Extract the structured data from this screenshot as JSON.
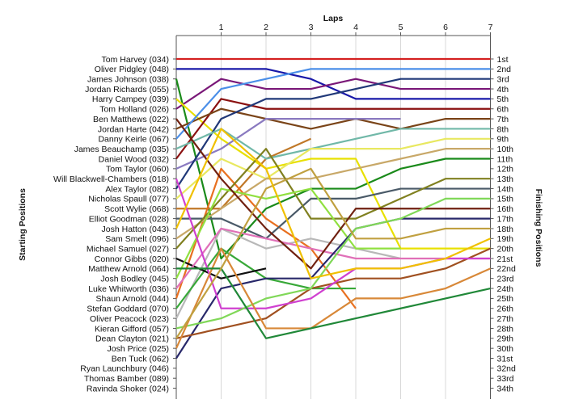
{
  "chart_data": {
    "type": "line",
    "title": "Laps",
    "ylabel_left": "Starting Positions",
    "ylabel_right": "Finishing Positions",
    "laps": [
      0,
      1,
      2,
      3,
      4,
      5,
      6,
      7
    ],
    "lap_tick_labels": [
      "1",
      "2",
      "3",
      "4",
      "5",
      "6",
      "7"
    ],
    "drivers": [
      "Tom Harvey (034)",
      "Oliver Pidgley (048)",
      "James Johnson (038)",
      "Jordan Richards (055)",
      "Harry Campey (039)",
      "Tom Holland (026)",
      "Ben Matthews (022)",
      "Jordan Harte (042)",
      "Danny Keirle (067)",
      "James Beauchamp (035)",
      "Daniel Wood (032)",
      "Tom Taylor (060)",
      "Will Blackwell-Chambers (018)",
      "Alex Taylor (082)",
      "Nicholas Spaull (077)",
      "Scott Wylie (068)",
      "Elliot Goodman (028)",
      "Josh Hatton (043)",
      "Sam Smelt (096)",
      "Michael Samuel (027)",
      "Connor Gibbs (020)",
      "Matthew Arnold (064)",
      "Josh Bodley (045)",
      "Luke Whitworth (036)",
      "Shaun Arnold (044)",
      "Stefan Goddard (070)",
      "Oliver Peacock (023)",
      "Kieran Gifford (057)",
      "Dean Clayton (021)",
      "Josh Price (025)",
      "Ben Tuck (062)",
      "Ryan Launchbury (046)",
      "Thomas Bamber (089)",
      "Ravinda Shoker (024)"
    ],
    "finish_labels": [
      "1st",
      "2nd",
      "3rd",
      "4th",
      "5th",
      "6th",
      "7th",
      "8th",
      "9th",
      "10th",
      "11th",
      "12th",
      "13th",
      "14th",
      "15th",
      "16th",
      "17th",
      "18th",
      "19th",
      "20th",
      "21st",
      "22nd",
      "23rd",
      "24th",
      "25th",
      "26th",
      "27th",
      "28th",
      "29th",
      "30th",
      "31st",
      "32nd",
      "33rd",
      "34th"
    ],
    "ylim": [
      1,
      34
    ],
    "xlim": [
      0,
      7
    ],
    "series": [
      {
        "color": "#d42020",
        "positions": [
          1,
          1,
          1,
          1,
          1,
          1,
          1,
          1
        ]
      },
      {
        "color": "#1818a8",
        "positions": [
          2,
          2,
          2,
          3,
          5,
          5,
          5,
          5
        ]
      },
      {
        "color": "#1a8a1a",
        "positions": [
          3,
          21,
          16,
          14,
          14,
          12,
          11,
          11
        ]
      },
      {
        "color": "#7a1878",
        "positions": [
          6,
          3,
          4,
          4,
          3,
          4,
          4,
          4
        ]
      },
      {
        "color": "#e8e000",
        "positions": [
          5,
          9,
          12,
          11,
          11,
          20,
          20,
          20
        ]
      },
      {
        "color": "#8a1010",
        "positions": [
          11,
          5,
          6,
          6,
          6,
          6,
          6,
          6
        ]
      },
      {
        "color": "#c07828",
        "positions": [
          16,
          16,
          11,
          9
        ]
      },
      {
        "color": "#7a4418",
        "positions": [
          8,
          6,
          7,
          8,
          7,
          8,
          7,
          7
        ]
      },
      {
        "color": "#4a8ee8",
        "positions": [
          9,
          4,
          3,
          2,
          2,
          2,
          2,
          2
        ]
      },
      {
        "color": "#8a7ac0",
        "positions": [
          12,
          10,
          7,
          7,
          7,
          7
        ]
      },
      {
        "color": "#203878",
        "positions": [
          14,
          7,
          5,
          5,
          4,
          3,
          3,
          3
        ]
      },
      {
        "color": "#70b8a8",
        "positions": [
          10,
          8,
          11,
          10,
          9,
          8,
          8,
          8
        ]
      },
      {
        "color": "#e87020",
        "positions": [
          25,
          12,
          17,
          20,
          26
        ]
      },
      {
        "color": "#b8b8b8",
        "positions": [
          27,
          18,
          20,
          19,
          20,
          21
        ]
      },
      {
        "color": "#38a838",
        "positions": [
          26,
          20,
          23,
          24,
          24
        ]
      },
      {
        "color": "#e8e860",
        "positions": [
          15,
          11,
          13,
          10,
          10,
          10,
          9,
          9
        ]
      },
      {
        "color": "#4a5a68",
        "positions": [
          17,
          17,
          19,
          15,
          15,
          14,
          14,
          14
        ]
      },
      {
        "color": "#c8a868",
        "positions": [
          19,
          16,
          13,
          13,
          12,
          11,
          10,
          10
        ]
      },
      {
        "color": "#808020",
        "positions": [
          20,
          15,
          10,
          17,
          17,
          15,
          13,
          13
        ]
      },
      {
        "color": "#101010",
        "positions": [
          21,
          23,
          22
        ]
      },
      {
        "color": "#90e040",
        "positions": [
          23,
          14,
          15,
          14,
          20,
          20
        ]
      },
      {
        "color": "#e070b8",
        "positions": [
          24,
          18,
          19,
          20,
          21,
          21,
          21,
          21
        ]
      },
      {
        "color": "#702010",
        "positions": [
          7,
          13,
          18,
          22,
          16,
          16,
          16,
          16
        ]
      },
      {
        "color": "#28286a",
        "positions": [
          31,
          24,
          23,
          23,
          18,
          17,
          17,
          17
        ]
      },
      {
        "color": "#a05020",
        "positions": [
          29,
          28,
          27,
          24,
          23,
          23,
          22,
          20
        ]
      },
      {
        "color": "#d040d0",
        "positions": [
          13,
          26,
          26,
          25,
          22,
          22,
          21,
          21
        ]
      },
      {
        "color": "#80d858",
        "positions": [
          28,
          27,
          25,
          24,
          18,
          17,
          15,
          15
        ]
      },
      {
        "color": "#d88838",
        "positions": [
          30,
          20,
          28,
          28,
          25,
          25,
          24,
          22
        ]
      },
      {
        "color": "#208838",
        "positions": [
          22,
          22,
          29,
          28,
          27,
          26,
          25,
          24
        ]
      },
      {
        "color": "#c0a040",
        "positions": [
          29,
          22,
          14,
          12,
          19,
          19,
          18,
          18
        ]
      },
      {
        "color": "#f0c000",
        "positions": [
          18,
          8,
          12,
          23,
          22,
          22,
          21,
          19
        ]
      }
    ]
  }
}
